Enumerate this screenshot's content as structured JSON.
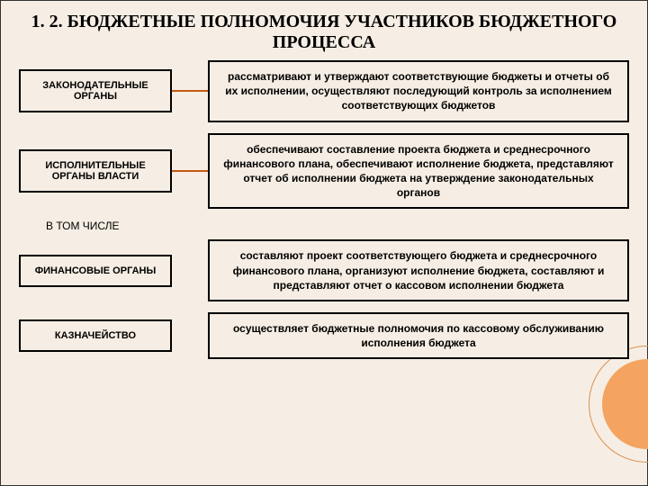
{
  "title": "1. 2. БЮДЖЕТНЫЕ ПОЛНОМОЧИЯ УЧАСТНИКОВ БЮДЖЕТНОГО ПРОЦЕССА",
  "rows": [
    {
      "left": "ЗАКОНОДАТЕЛЬНЫЕ ОРГАНЫ",
      "right": "рассматривают и утверждают соответствующие бюджеты и отчеты об их исполнении, осуществляют последующий контроль за исполнением соответствующих бюджетов",
      "connector": true
    },
    {
      "left": "ИСПОЛНИТЕЛЬНЫЕ ОРГАНЫ ВЛАСТИ",
      "right": "обеспечивают составление проекта бюджета и среднесрочного финансового плана, обеспечивают исполнение бюджета, представляют отчет об исполнении бюджета на утверждение законодательных органов",
      "connector": true
    }
  ],
  "subtitle": "В ТОМ ЧИСЛЕ",
  "rows2": [
    {
      "left": "ФИНАНСОВЫЕ ОРГАНЫ",
      "right": "составляют проект соответствующего бюджета и среднесрочного финансового плана, организуют исполнение бюджета, составляют и представляют отчет о кассовом исполнении бюджета",
      "connector": false
    },
    {
      "left": "КАЗНАЧЕЙСТВО",
      "right": "осуществляет бюджетные полномочия по кассовому обслуживанию исполнения бюджета",
      "connector": false
    }
  ],
  "colors": {
    "background": "#f6eee4",
    "border": "#000000",
    "connector": "#c55a11",
    "circle": "#f4a460"
  }
}
